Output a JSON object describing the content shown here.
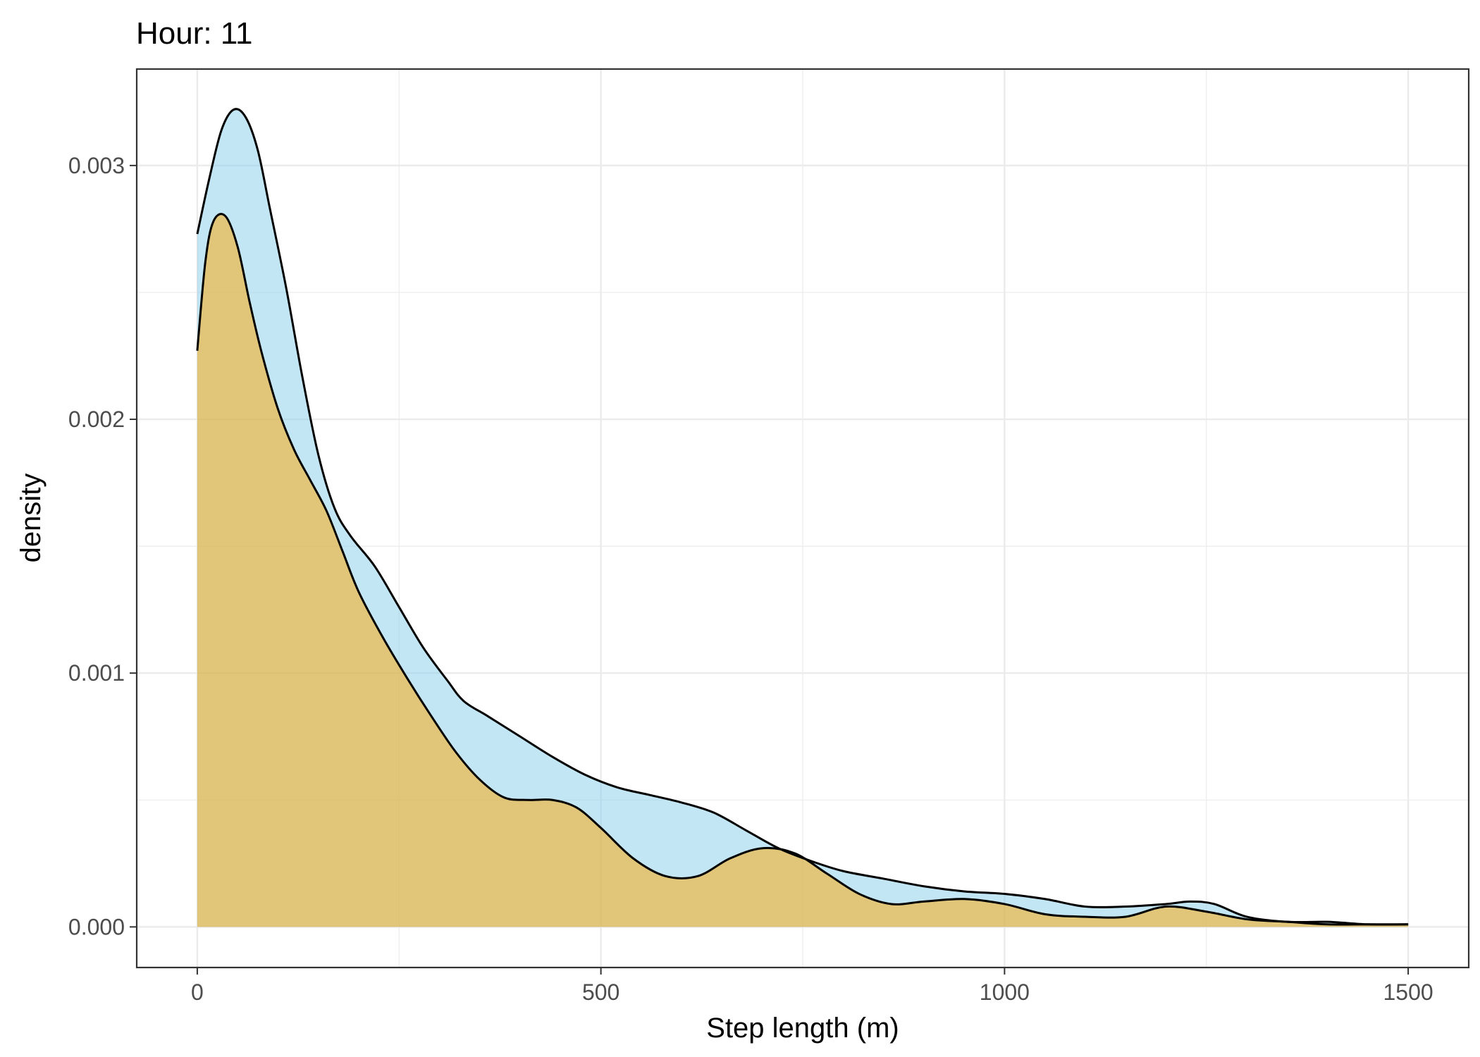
{
  "chart_data": {
    "type": "area",
    "title": "Hour: 11",
    "xlabel": "Step length (m)",
    "ylabel": "density",
    "xlim": [
      -75,
      1575
    ],
    "ylim": [
      -0.00016,
      0.00338
    ],
    "x_ticks": [
      0,
      500,
      1000,
      1500
    ],
    "x_tick_labels": [
      "0",
      "500",
      "1000",
      "1500"
    ],
    "y_ticks": [
      0,
      0.001,
      0.002,
      0.003
    ],
    "y_tick_labels": [
      "0.000",
      "0.001",
      "0.002",
      "0.003"
    ],
    "grid": true,
    "legend": "none",
    "series": [
      {
        "color": "#87CEEB",
        "opacity": 0.5,
        "x": [
          0,
          15,
          30,
          45,
          60,
          75,
          90,
          110,
          130,
          150,
          170,
          190,
          220,
          250,
          280,
          310,
          330,
          360,
          400,
          440,
          480,
          520,
          560,
          600,
          640,
          680,
          720,
          760,
          800,
          850,
          900,
          950,
          1000,
          1050,
          1100,
          1150,
          1200,
          1230,
          1260,
          1300,
          1350,
          1400,
          1450,
          1500
        ],
        "y": [
          0.00273,
          0.00295,
          0.00314,
          0.00322,
          0.00319,
          0.00306,
          0.00283,
          0.00252,
          0.00217,
          0.00186,
          0.00165,
          0.00154,
          0.00142,
          0.00126,
          0.0011,
          0.00097,
          0.00089,
          0.00083,
          0.00075,
          0.00067,
          0.0006,
          0.00055,
          0.00052,
          0.00049,
          0.00045,
          0.00038,
          0.00031,
          0.00026,
          0.00022,
          0.00019,
          0.00016,
          0.00014,
          0.00013,
          0.00011,
          8e-05,
          8e-05,
          9e-05,
          0.0001,
          9e-05,
          4e-05,
          2e-05,
          2e-05,
          1e-05,
          1e-05
        ]
      },
      {
        "color": "#FFA500",
        "opacity": 0.5,
        "x": [
          0,
          10,
          20,
          35,
          50,
          65,
          80,
          100,
          120,
          140,
          160,
          180,
          200,
          230,
          260,
          290,
          320,
          350,
          380,
          410,
          440,
          470,
          500,
          540,
          580,
          620,
          660,
          700,
          740,
          780,
          820,
          860,
          900,
          950,
          1000,
          1050,
          1100,
          1150,
          1200,
          1250,
          1300,
          1350,
          1400,
          1450,
          1500
        ],
        "y": [
          0.00227,
          0.00262,
          0.00278,
          0.0028,
          0.00268,
          0.00246,
          0.00226,
          0.00204,
          0.00188,
          0.00176,
          0.00164,
          0.00148,
          0.00132,
          0.00114,
          0.00098,
          0.00083,
          0.00069,
          0.00058,
          0.00051,
          0.0005,
          0.0005,
          0.00047,
          0.00039,
          0.00027,
          0.0002,
          0.0002,
          0.00027,
          0.00031,
          0.00029,
          0.00021,
          0.00013,
          9e-05,
          0.0001,
          0.00011,
          9e-05,
          5e-05,
          4e-05,
          4e-05,
          8e-05,
          6e-05,
          3e-05,
          2e-05,
          1e-05,
          1e-05,
          1e-05
        ]
      }
    ]
  }
}
